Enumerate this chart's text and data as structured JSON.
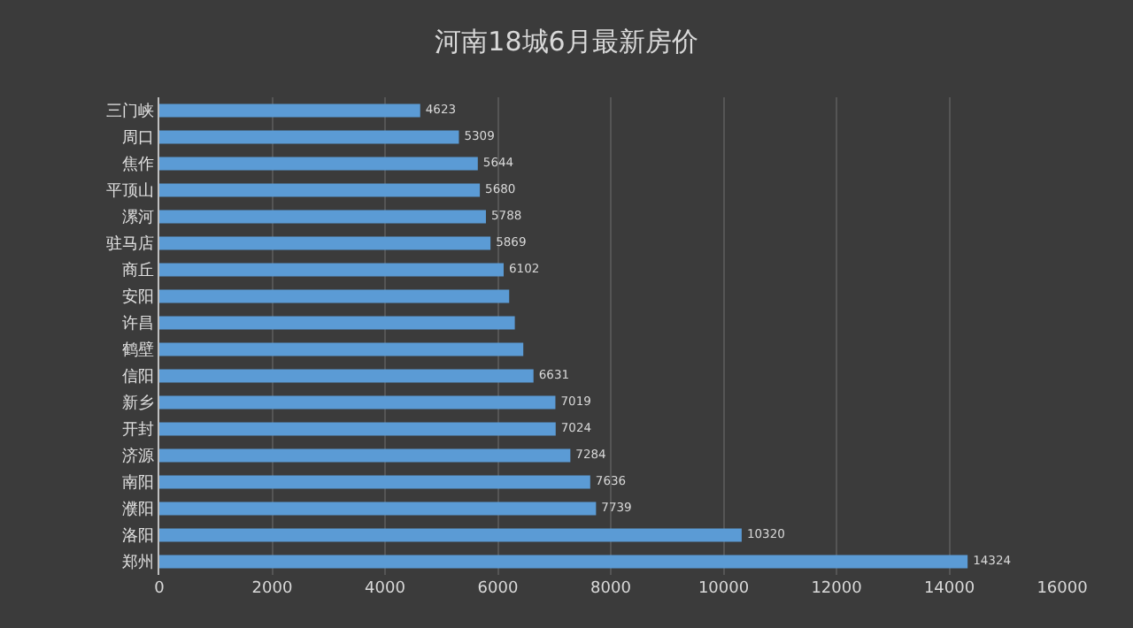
{
  "chart_data": {
    "type": "bar",
    "orientation": "horizontal",
    "title": "河南18城6月最新房价",
    "categories": [
      "三门峡",
      "周口",
      "焦作",
      "平顶山",
      "漯河",
      "驻马店",
      "商丘",
      "安阳",
      "许昌",
      "鹤壁",
      "信阳",
      "新乡",
      "开封",
      "济源",
      "南阳",
      "濮阳",
      "洛阳",
      "郑州"
    ],
    "values": [
      4623,
      5309,
      5644,
      5680,
      5788,
      5869,
      6102,
      6200,
      6300,
      6450,
      6631,
      7019,
      7024,
      7284,
      7636,
      7739,
      10320,
      14324
    ],
    "value_labels": [
      "4623",
      "5309",
      "5644",
      "5680",
      "5788",
      "5869",
      "6102",
      null,
      null,
      null,
      "6631",
      "7019",
      "7024",
      "7284",
      "7636",
      "7739",
      "10320",
      "14324"
    ],
    "color": "#5b9bd5",
    "xlim": [
      0,
      16000
    ],
    "xticks": [
      0,
      2000,
      4000,
      6000,
      8000,
      10000,
      12000,
      14000,
      16000
    ],
    "grid": "x"
  }
}
